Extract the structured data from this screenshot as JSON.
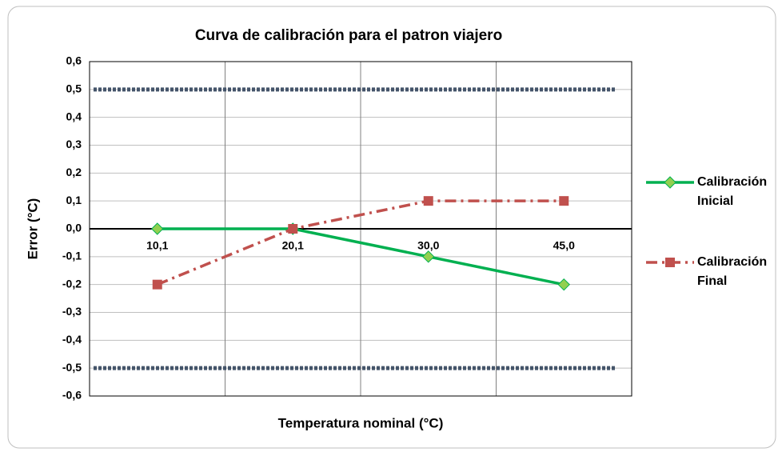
{
  "chart_data": {
    "type": "line",
    "title": "Curva de calibración  para el patron viajero",
    "x_label": "Temperatura nominal (°C)",
    "y_label": "Error (°C)",
    "categories": [
      "10,1",
      "20,1",
      "30,0",
      "45,0"
    ],
    "series": [
      {
        "name": "Calibración Inicial",
        "color": "#00b050",
        "marker": "diamond",
        "marker_color": "#92d050",
        "dash": "solid",
        "values": [
          0.0,
          0.0,
          -0.1,
          -0.2
        ]
      },
      {
        "name": "Calibración Final",
        "color": "#c0504d",
        "marker": "square",
        "marker_color": "#c0504d",
        "dash": "dashdot",
        "values": [
          -0.2,
          0.0,
          0.1,
          0.1
        ]
      }
    ],
    "reference_lines": [
      {
        "value": 0.5,
        "color": "#44546a"
      },
      {
        "value": -0.5,
        "color": "#44546a"
      }
    ],
    "ylim": [
      -0.6,
      0.6
    ],
    "yticks": [
      {
        "value": -0.6,
        "label": "-0,6"
      },
      {
        "value": -0.5,
        "label": "-0,5"
      },
      {
        "value": -0.4,
        "label": "-0,4"
      },
      {
        "value": -0.3,
        "label": "-0,3"
      },
      {
        "value": -0.2,
        "label": "-0,2"
      },
      {
        "value": -0.1,
        "label": "-0,1"
      },
      {
        "value": 0,
        "label": "0,0"
      },
      {
        "value": 0.1,
        "label": "0,1"
      },
      {
        "value": 0.2,
        "label": "0,2"
      },
      {
        "value": 0.3,
        "label": "0,3"
      },
      {
        "value": 0.4,
        "label": "0,4"
      },
      {
        "value": 0.5,
        "label": "0,5"
      },
      {
        "value": 0.6,
        "label": "0,6"
      }
    ],
    "grid": true,
    "legend": "right"
  }
}
